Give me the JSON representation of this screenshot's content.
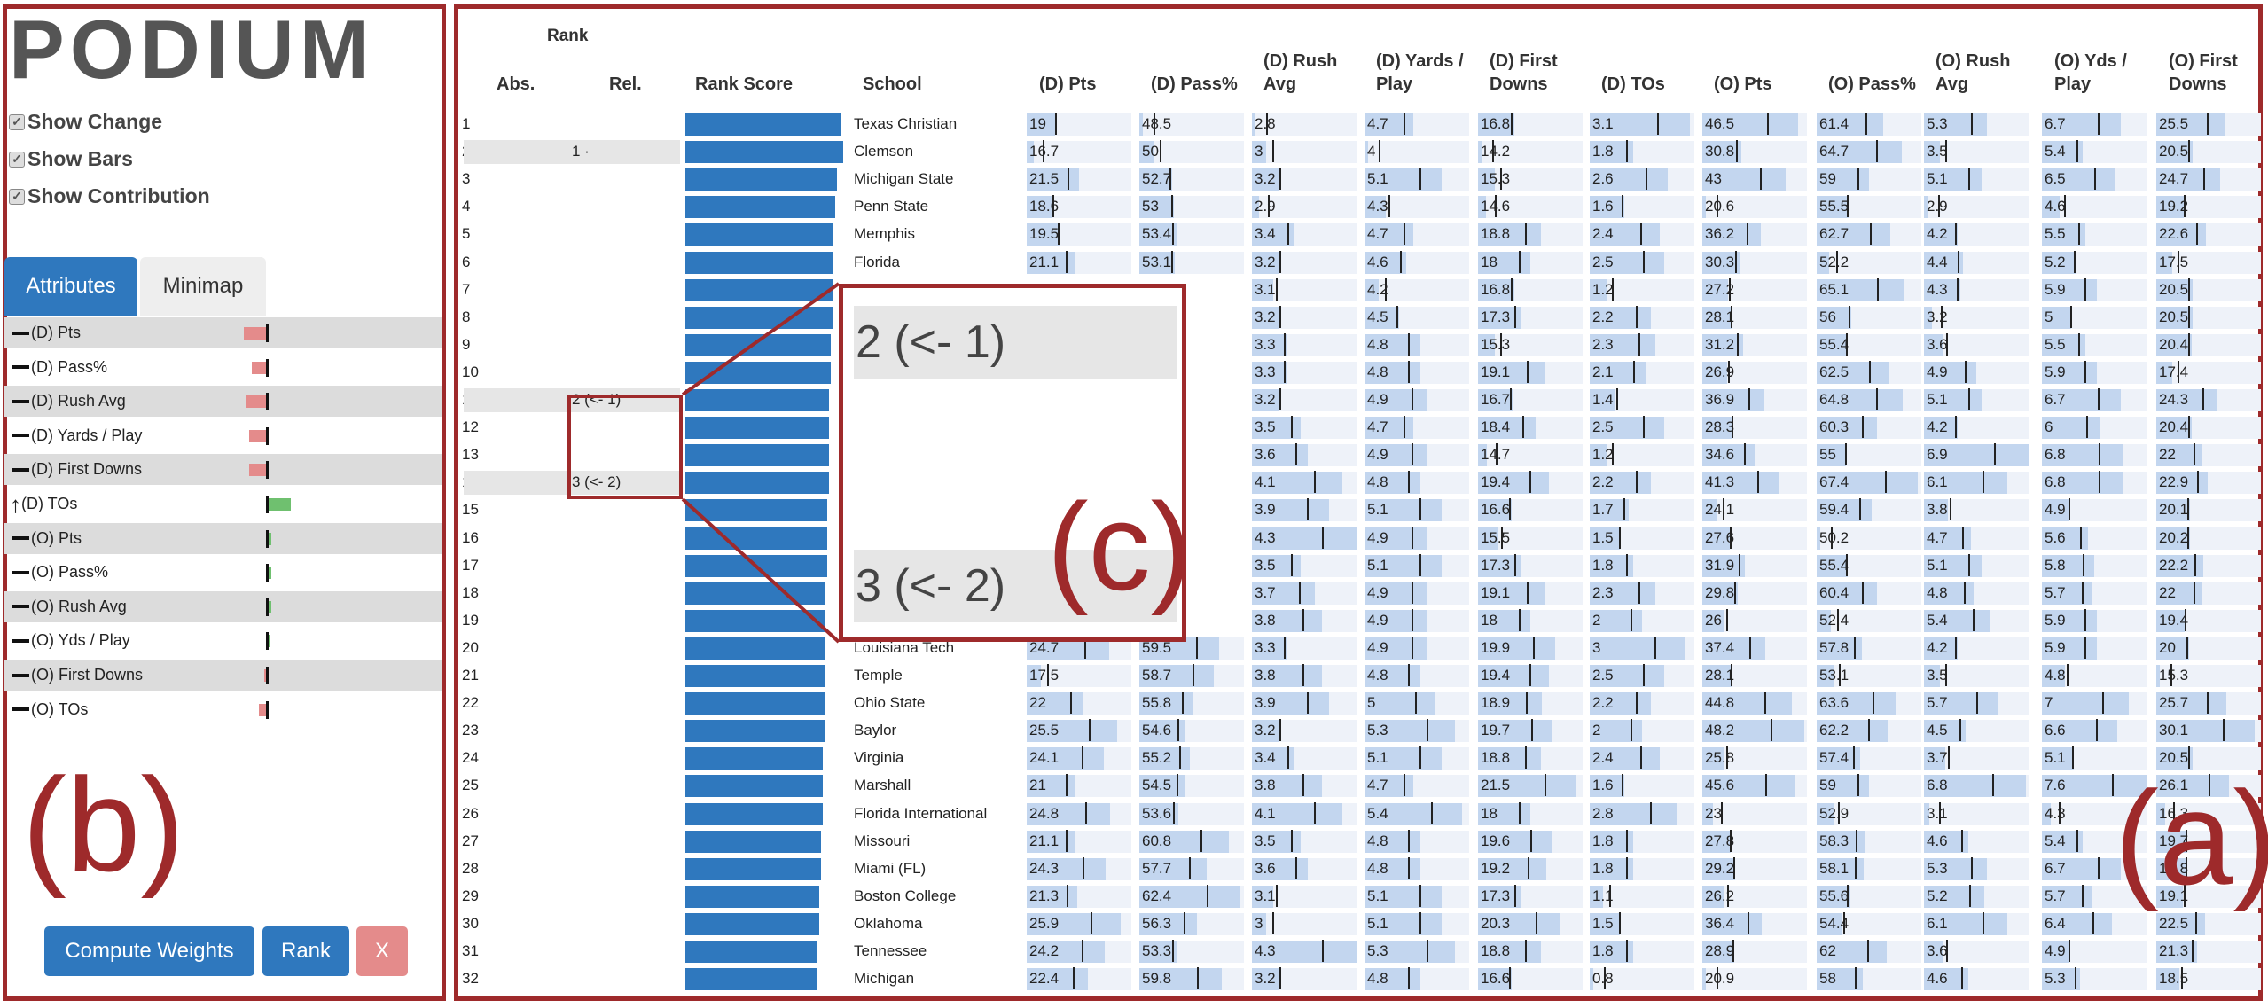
{
  "logo": "PODIUM",
  "options": [
    "Show Change",
    "Show Bars",
    "Show Contribution"
  ],
  "tabs": {
    "attributes": "Attributes",
    "minimap": "Minimap"
  },
  "attributes": [
    {
      "label": "(D) Pts",
      "dir": "none",
      "weight": -0.45
    },
    {
      "label": "(D) Pass%",
      "dir": "none",
      "weight": -0.3
    },
    {
      "label": "(D) Rush Avg",
      "dir": "none",
      "weight": -0.4
    },
    {
      "label": "(D) Yards / Play",
      "dir": "none",
      "weight": -0.35
    },
    {
      "label": "(D) First Downs",
      "dir": "none",
      "weight": -0.35
    },
    {
      "label": "(D) TOs",
      "dir": "up",
      "weight": 0.45
    },
    {
      "label": "(O) Pts",
      "dir": "none",
      "weight": 0.05
    },
    {
      "label": "(O) Pass%",
      "dir": "none",
      "weight": 0.05
    },
    {
      "label": "(O) Rush Avg",
      "dir": "none",
      "weight": 0.05
    },
    {
      "label": "(O) Yds / Play",
      "dir": "none",
      "weight": 0.02
    },
    {
      "label": "(O) First Downs",
      "dir": "none",
      "weight": -0.03
    },
    {
      "label": "(O) TOs",
      "dir": "none",
      "weight": -0.15
    }
  ],
  "buttons": {
    "compute": "Compute Weights",
    "rank": "Rank",
    "x": "X"
  },
  "labels": {
    "a": "(a)",
    "b": "(b)",
    "c": "(c)"
  },
  "zoom": {
    "top": "2 (<- 1)",
    "bottom": "3 (<- 2)"
  },
  "table": {
    "rank_group": "Rank",
    "columns": [
      {
        "key": "abs",
        "label": "Abs."
      },
      {
        "key": "rel",
        "label": "Rel."
      },
      {
        "key": "score",
        "label": "Rank Score"
      },
      {
        "key": "school",
        "label": "School"
      },
      {
        "key": "dpts",
        "label": "(D) Pts"
      },
      {
        "key": "dpass",
        "label": "(D) Pass%"
      },
      {
        "key": "drush",
        "label": "(D) Rush\nAvg"
      },
      {
        "key": "dyds",
        "label": "(D) Yards /\nPlay"
      },
      {
        "key": "dfirst",
        "label": "(D) First\nDowns"
      },
      {
        "key": "dtos",
        "label": "(D) TOs"
      },
      {
        "key": "opts",
        "label": "(O) Pts"
      },
      {
        "key": "opass",
        "label": "(O) Pass%"
      },
      {
        "key": "orush",
        "label": "(O) Rush\nAvg"
      },
      {
        "key": "oyds",
        "label": "(O) Yds /\nPlay"
      },
      {
        "key": "ofirst",
        "label": "(O) First\nDowns"
      }
    ],
    "rows": [
      {
        "abs": "1",
        "rel": "",
        "school": "Texas Christian",
        "score": 0.98,
        "v": [
          "19",
          "48.5",
          "2.8",
          "4.7",
          "16.8",
          "3.1",
          "46.5",
          "61.4",
          "5.3",
          "6.7",
          "25.5"
        ]
      },
      {
        "abs": "2",
        "rel": "1 ·",
        "school": "Clemson",
        "score": 0.99,
        "v": [
          "16.7",
          "50",
          "3",
          "4",
          "14.2",
          "1.8",
          "30.8",
          "64.7",
          "3.5",
          "5.4",
          "20.5"
        ]
      },
      {
        "abs": "3",
        "rel": "",
        "school": "Michigan State",
        "score": 0.95,
        "v": [
          "21.5",
          "52.7",
          "3.2",
          "5.1",
          "15.3",
          "2.6",
          "43",
          "59",
          "5.1",
          "6.5",
          "24.7"
        ]
      },
      {
        "abs": "4",
        "rel": "",
        "school": "Penn State",
        "score": 0.94,
        "v": [
          "18.6",
          "53",
          "2.9",
          "4.3",
          "14.6",
          "1.6",
          "20.6",
          "55.5",
          "2.9",
          "4.6",
          "19.2"
        ]
      },
      {
        "abs": "5",
        "rel": "",
        "school": "Memphis",
        "score": 0.93,
        "v": [
          "19.5",
          "53.4",
          "3.4",
          "4.7",
          "18.8",
          "2.4",
          "36.2",
          "62.7",
          "4.2",
          "5.5",
          "22.6"
        ]
      },
      {
        "abs": "6",
        "rel": "",
        "school": "Florida",
        "score": 0.93,
        "v": [
          "21.1",
          "53.1",
          "3.2",
          "4.6",
          "18",
          "2.5",
          "30.3",
          "52.2",
          "4.4",
          "5.2",
          "17.5"
        ]
      },
      {
        "abs": "7",
        "rel": "",
        "school": "",
        "score": 0.92,
        "v": [
          "",
          "",
          "3.1",
          "4.2",
          "16.8",
          "1.2",
          "27.2",
          "65.1",
          "4.3",
          "5.9",
          "20.5"
        ]
      },
      {
        "abs": "8",
        "rel": "",
        "school": "",
        "score": 0.92,
        "v": [
          "",
          "",
          "3.2",
          "4.5",
          "17.3",
          "2.2",
          "28.1",
          "56",
          "3.2",
          "5",
          "20.5"
        ]
      },
      {
        "abs": "9",
        "rel": "",
        "school": "",
        "score": 0.91,
        "v": [
          "",
          "",
          "3.3",
          "4.8",
          "15.3",
          "2.3",
          "31.2",
          "55.4",
          "3.6",
          "5.5",
          "20.4"
        ]
      },
      {
        "abs": "10",
        "rel": "",
        "school": "",
        "score": 0.91,
        "v": [
          "",
          "",
          "3.3",
          "4.8",
          "19.1",
          "2.1",
          "26.9",
          "62.5",
          "4.9",
          "5.9",
          "17.4"
        ]
      },
      {
        "abs": "11",
        "rel": "2 (<- 1)",
        "school": "",
        "score": 0.9,
        "v": [
          "",
          "",
          "3.2",
          "4.9",
          "16.7",
          "1.4",
          "36.9",
          "64.8",
          "5.1",
          "6.7",
          "24.3"
        ]
      },
      {
        "abs": "12",
        "rel": "",
        "school": "",
        "score": 0.9,
        "v": [
          "",
          "",
          "3.5",
          "4.7",
          "18.4",
          "2.5",
          "28.3",
          "60.3",
          "4.2",
          "6",
          "20.4"
        ]
      },
      {
        "abs": "13",
        "rel": "",
        "school": "",
        "score": 0.9,
        "v": [
          "",
          "",
          "3.6",
          "4.9",
          "14.7",
          "1.2",
          "34.6",
          "55",
          "6.9",
          "6.8",
          "22"
        ]
      },
      {
        "abs": "14",
        "rel": "3 (<- 2)",
        "school": "",
        "score": 0.9,
        "v": [
          "",
          "",
          "4.1",
          "4.8",
          "19.4",
          "2.2",
          "41.3",
          "67.4",
          "6.1",
          "6.8",
          "22.9"
        ]
      },
      {
        "abs": "15",
        "rel": "",
        "school": "",
        "score": 0.89,
        "v": [
          "",
          "",
          "3.9",
          "5.1",
          "16.6",
          "1.7",
          "24.1",
          "59.4",
          "3.8",
          "4.9",
          "20.1"
        ]
      },
      {
        "abs": "16",
        "rel": "",
        "school": "",
        "score": 0.89,
        "v": [
          "",
          "",
          "4.3",
          "4.9",
          "15.5",
          "1.5",
          "27.6",
          "50.2",
          "4.7",
          "5.6",
          "20.2"
        ]
      },
      {
        "abs": "17",
        "rel": "",
        "school": "",
        "score": 0.89,
        "v": [
          "",
          "",
          "3.5",
          "5.1",
          "17.3",
          "1.8",
          "31.9",
          "55.4",
          "5.1",
          "5.8",
          "22.2"
        ]
      },
      {
        "abs": "18",
        "rel": "",
        "school": "",
        "score": 0.88,
        "v": [
          "",
          "",
          "3.7",
          "4.9",
          "19.1",
          "2.3",
          "29.8",
          "60.4",
          "4.8",
          "5.7",
          "22"
        ]
      },
      {
        "abs": "19",
        "rel": "",
        "school": "",
        "score": 0.88,
        "v": [
          "",
          "",
          "3.8",
          "4.9",
          "18",
          "2",
          "26",
          "52.4",
          "5.4",
          "5.9",
          "19.4"
        ]
      },
      {
        "abs": "20",
        "rel": "",
        "school": "Louisiana Tech",
        "score": 0.88,
        "v": [
          "24.7",
          "59.5",
          "3.3",
          "4.9",
          "19.9",
          "3",
          "37.4",
          "57.8",
          "4.2",
          "5.9",
          "20"
        ]
      },
      {
        "abs": "21",
        "rel": "",
        "school": "Temple",
        "score": 0.87,
        "v": [
          "17.5",
          "58.7",
          "3.8",
          "4.8",
          "19.4",
          "2.5",
          "28.1",
          "53.1",
          "3.5",
          "4.8",
          "15.3"
        ]
      },
      {
        "abs": "22",
        "rel": "",
        "school": "Ohio State",
        "score": 0.87,
        "v": [
          "22",
          "55.8",
          "3.9",
          "5",
          "18.9",
          "2.2",
          "44.8",
          "63.6",
          "5.7",
          "7",
          "25.7"
        ]
      },
      {
        "abs": "23",
        "rel": "",
        "school": "Baylor",
        "score": 0.87,
        "v": [
          "25.5",
          "54.6",
          "3.2",
          "5.3",
          "19.7",
          "2",
          "48.2",
          "62.2",
          "4.5",
          "6.6",
          "30.1"
        ]
      },
      {
        "abs": "24",
        "rel": "",
        "school": "Virginia",
        "score": 0.86,
        "v": [
          "24.1",
          "55.2",
          "3.4",
          "5.1",
          "18.8",
          "2.4",
          "25.8",
          "57.4",
          "3.7",
          "5.1",
          "20.5"
        ]
      },
      {
        "abs": "25",
        "rel": "",
        "school": "Marshall",
        "score": 0.86,
        "v": [
          "21",
          "54.5",
          "3.8",
          "4.7",
          "21.5",
          "1.6",
          "45.6",
          "59",
          "6.8",
          "7.6",
          "26.1"
        ]
      },
      {
        "abs": "26",
        "rel": "",
        "school": "Florida International",
        "score": 0.86,
        "v": [
          "24.8",
          "53.6",
          "4.1",
          "5.4",
          "18",
          "2.8",
          "23",
          "52.9",
          "3.1",
          "4.3",
          "16.3"
        ]
      },
      {
        "abs": "27",
        "rel": "",
        "school": "Missouri",
        "score": 0.85,
        "v": [
          "21.1",
          "60.8",
          "3.5",
          "4.8",
          "19.6",
          "1.8",
          "27.8",
          "58.3",
          "4.6",
          "5.4",
          "19.7"
        ]
      },
      {
        "abs": "28",
        "rel": "",
        "school": "Miami (FL)",
        "score": 0.85,
        "v": [
          "24.3",
          "57.7",
          "3.6",
          "4.8",
          "19.2",
          "1.8",
          "29.2",
          "58.1",
          "5.3",
          "6.7",
          "19.8"
        ]
      },
      {
        "abs": "29",
        "rel": "",
        "school": "Boston College",
        "score": 0.84,
        "v": [
          "21.3",
          "62.4",
          "3.1",
          "5.1",
          "17.3",
          "1.1",
          "26.2",
          "55.6",
          "5.2",
          "5.7",
          "19.1"
        ]
      },
      {
        "abs": "30",
        "rel": "",
        "school": "Oklahoma",
        "score": 0.84,
        "v": [
          "25.9",
          "56.3",
          "3",
          "5.1",
          "20.3",
          "1.5",
          "36.4",
          "54.4",
          "6.1",
          "6.4",
          "22.5"
        ]
      },
      {
        "abs": "31",
        "rel": "",
        "school": "Tennessee",
        "score": 0.83,
        "v": [
          "24.2",
          "53.3",
          "4.3",
          "5.3",
          "18.8",
          "1.8",
          "28.9",
          "62",
          "3.6",
          "4.9",
          "21.3"
        ]
      },
      {
        "abs": "32",
        "rel": "",
        "school": "Michigan",
        "score": 0.83,
        "v": [
          "22.4",
          "59.8",
          "3.2",
          "4.8",
          "16.6",
          "0.8",
          "20.9",
          "58",
          "4.6",
          "5.3",
          "18.5"
        ]
      }
    ]
  },
  "colors": {
    "frame": "#9e2a2b",
    "primary": "#2f78be",
    "bar": "#c3d6ef",
    "neg": "#e48b8b",
    "pos": "#6fc06f"
  }
}
